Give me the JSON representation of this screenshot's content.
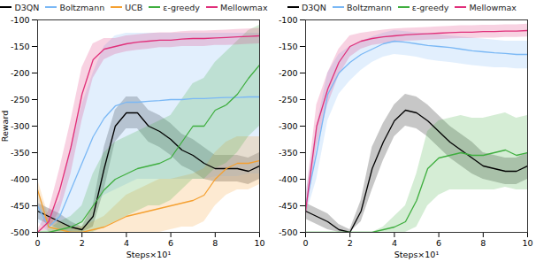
{
  "chart_data": [
    {
      "type": "line",
      "xlabel": "Steps×10¹",
      "ylabel": "Reward",
      "xlim": [
        0,
        10
      ],
      "ylim": [
        -500,
        -100
      ],
      "xticks": [
        0,
        2,
        4,
        6,
        8,
        10
      ],
      "yticks": [
        -500,
        -450,
        -400,
        -350,
        -300,
        -250,
        -200,
        -150,
        -100
      ],
      "grid": false,
      "legend": "top",
      "x": [
        0,
        0.5,
        1,
        1.5,
        2,
        2.5,
        3,
        3.5,
        4,
        4.5,
        5,
        5.5,
        6,
        6.5,
        7,
        7.5,
        8,
        8.5,
        9,
        9.5,
        10
      ],
      "series": [
        {
          "name": "D3QN",
          "color": "#000000",
          "values": [
            -460,
            -470,
            -480,
            -490,
            -495,
            -470,
            -380,
            -300,
            -275,
            -275,
            -300,
            -310,
            -325,
            -345,
            -355,
            -370,
            -380,
            -380,
            -380,
            -385,
            -375
          ],
          "lower": [
            -475,
            -485,
            -495,
            -500,
            -500,
            -490,
            -420,
            -330,
            -305,
            -305,
            -330,
            -340,
            -355,
            -375,
            -385,
            -400,
            -405,
            -405,
            -405,
            -410,
            -400
          ],
          "upper": [
            -445,
            -455,
            -465,
            -480,
            -490,
            -450,
            -340,
            -270,
            -245,
            -245,
            -270,
            -280,
            -295,
            -315,
            -325,
            -340,
            -355,
            -355,
            -355,
            -360,
            -350
          ]
        },
        {
          "name": "Boltzmann",
          "color": "#7ab8f5",
          "values": [
            -450,
            -490,
            -470,
            -420,
            -370,
            -320,
            -285,
            -262,
            -255,
            -255,
            -253,
            -252,
            -250,
            -250,
            -248,
            -248,
            -247,
            -246,
            -246,
            -245,
            -245
          ],
          "lower": [
            -480,
            -500,
            -500,
            -500,
            -480,
            -450,
            -430,
            -420,
            -410,
            -400,
            -400,
            -400,
            -400,
            -400,
            -400,
            -400,
            -395,
            -395,
            -395,
            -390,
            -390
          ],
          "upper": [
            -420,
            -470,
            -440,
            -340,
            -260,
            -200,
            -150,
            -130,
            -125,
            -125,
            -125,
            -125,
            -125,
            -125,
            -125,
            -125,
            -125,
            -125,
            -125,
            -125,
            -125
          ]
        },
        {
          "name": "UCB",
          "color": "#f5a030",
          "values": [
            -420,
            -490,
            -495,
            -500,
            -500,
            -495,
            -490,
            -480,
            -470,
            -465,
            -460,
            -455,
            -450,
            -445,
            -440,
            -430,
            -400,
            -380,
            -370,
            -370,
            -365
          ],
          "lower": [
            -440,
            -500,
            -500,
            -500,
            -500,
            -500,
            -500,
            -500,
            -500,
            -500,
            -500,
            -500,
            -495,
            -490,
            -490,
            -480,
            -450,
            -430,
            -420,
            -420,
            -410
          ],
          "upper": [
            -400,
            -470,
            -480,
            -490,
            -490,
            -480,
            -470,
            -450,
            -430,
            -420,
            -410,
            -400,
            -400,
            -395,
            -390,
            -380,
            -350,
            -330,
            -320,
            -320,
            -320
          ]
        },
        {
          "name": "ε-greedy",
          "color": "#3fae3f",
          "values": [
            -500,
            -500,
            -495,
            -490,
            -480,
            -450,
            -420,
            -400,
            -390,
            -380,
            -375,
            -370,
            -360,
            -330,
            -300,
            -300,
            -270,
            -260,
            -240,
            -210,
            -185
          ],
          "lower": [
            -500,
            -500,
            -500,
            -500,
            -500,
            -500,
            -490,
            -480,
            -470,
            -460,
            -450,
            -450,
            -440,
            -420,
            -400,
            -400,
            -380,
            -370,
            -350,
            -320,
            -300
          ],
          "upper": [
            -500,
            -495,
            -480,
            -470,
            -450,
            -390,
            -350,
            -330,
            -320,
            -310,
            -300,
            -290,
            -280,
            -250,
            -220,
            -210,
            -180,
            -160,
            -140,
            -120,
            -110
          ]
        },
        {
          "name": "Mellowmax",
          "color": "#e0307a",
          "values": [
            -500,
            -480,
            -420,
            -340,
            -240,
            -175,
            -155,
            -150,
            -145,
            -142,
            -140,
            -138,
            -138,
            -136,
            -135,
            -135,
            -134,
            -133,
            -132,
            -131,
            -130
          ],
          "lower": [
            -500,
            -495,
            -460,
            -390,
            -290,
            -210,
            -175,
            -165,
            -160,
            -157,
            -155,
            -152,
            -152,
            -150,
            -150,
            -150,
            -148,
            -148,
            -147,
            -146,
            -145
          ],
          "upper": [
            -495,
            -460,
            -380,
            -290,
            -190,
            -145,
            -135,
            -135,
            -130,
            -128,
            -126,
            -124,
            -124,
            -122,
            -121,
            -121,
            -120,
            -119,
            -118,
            -117,
            -116
          ]
        }
      ]
    },
    {
      "type": "line",
      "xlabel": "Steps×10¹",
      "xlim": [
        0,
        10
      ],
      "ylim": [
        -500,
        -100
      ],
      "xticks": [
        0,
        2,
        4,
        6,
        8,
        10
      ],
      "yticks": [
        -500,
        -450,
        -400,
        -350,
        -300,
        -250,
        -200,
        -150,
        -100
      ],
      "grid": false,
      "legend": "top",
      "x": [
        0,
        0.5,
        1,
        1.5,
        2,
        2.5,
        3,
        3.5,
        4,
        4.5,
        5,
        5.5,
        6,
        6.5,
        7,
        7.5,
        8,
        8.5,
        9,
        9.5,
        10
      ],
      "series": [
        {
          "name": "D3QN",
          "color": "#000000",
          "values": [
            -460,
            -470,
            -480,
            -495,
            -500,
            -460,
            -380,
            -330,
            -290,
            -270,
            -275,
            -290,
            -310,
            -330,
            -345,
            -360,
            -375,
            -380,
            -385,
            -385,
            -375
          ],
          "lower": [
            -475,
            -485,
            -495,
            -500,
            -500,
            -480,
            -420,
            -365,
            -320,
            -300,
            -305,
            -320,
            -340,
            -360,
            -375,
            -390,
            -400,
            -405,
            -410,
            -410,
            -400
          ],
          "upper": [
            -445,
            -455,
            -465,
            -485,
            -495,
            -440,
            -340,
            -295,
            -260,
            -240,
            -245,
            -260,
            -280,
            -300,
            -315,
            -330,
            -350,
            -355,
            -360,
            -360,
            -350
          ]
        },
        {
          "name": "Boltzmann",
          "color": "#7ab8f5",
          "values": [
            -450,
            -350,
            -240,
            -200,
            -180,
            -165,
            -155,
            -145,
            -140,
            -142,
            -145,
            -148,
            -150,
            -152,
            -155,
            -158,
            -160,
            -162,
            -163,
            -165,
            -165
          ],
          "lower": [
            -470,
            -400,
            -290,
            -240,
            -215,
            -195,
            -180,
            -170,
            -165,
            -167,
            -170,
            -175,
            -178,
            -180,
            -183,
            -186,
            -188,
            -190,
            -190,
            -192,
            -192
          ],
          "upper": [
            -430,
            -300,
            -200,
            -165,
            -150,
            -140,
            -132,
            -125,
            -120,
            -122,
            -124,
            -126,
            -128,
            -130,
            -132,
            -134,
            -136,
            -138,
            -140,
            -140,
            -140
          ]
        },
        {
          "name": "ε-greedy",
          "color": "#3fae3f",
          "values": [
            -500,
            -500,
            -500,
            -500,
            -500,
            -500,
            -500,
            -495,
            -490,
            -480,
            -440,
            -380,
            -360,
            -355,
            -350,
            -355,
            -355,
            -350,
            -345,
            -355,
            -350
          ],
          "lower": [
            -500,
            -500,
            -500,
            -500,
            -500,
            -500,
            -500,
            -500,
            -500,
            -500,
            -490,
            -450,
            -430,
            -420,
            -420,
            -420,
            -420,
            -420,
            -415,
            -420,
            -420
          ],
          "upper": [
            -500,
            -500,
            -500,
            -500,
            -500,
            -500,
            -500,
            -490,
            -470,
            -450,
            -390,
            -310,
            -290,
            -285,
            -280,
            -285,
            -285,
            -280,
            -275,
            -285,
            -280
          ]
        },
        {
          "name": "Mellowmax",
          "color": "#e0307a",
          "values": [
            -460,
            -300,
            -230,
            -180,
            -150,
            -140,
            -135,
            -132,
            -130,
            -128,
            -127,
            -126,
            -125,
            -124,
            -123,
            -123,
            -122,
            -122,
            -121,
            -121,
            -120
          ],
          "lower": [
            -480,
            -340,
            -260,
            -205,
            -170,
            -155,
            -148,
            -145,
            -143,
            -140,
            -139,
            -138,
            -137,
            -136,
            -135,
            -135,
            -134,
            -134,
            -133,
            -133,
            -132
          ],
          "upper": [
            -440,
            -260,
            -200,
            -155,
            -130,
            -125,
            -122,
            -119,
            -117,
            -116,
            -115,
            -114,
            -113,
            -112,
            -111,
            -111,
            -110,
            -110,
            -109,
            -109,
            -108
          ]
        }
      ]
    }
  ]
}
